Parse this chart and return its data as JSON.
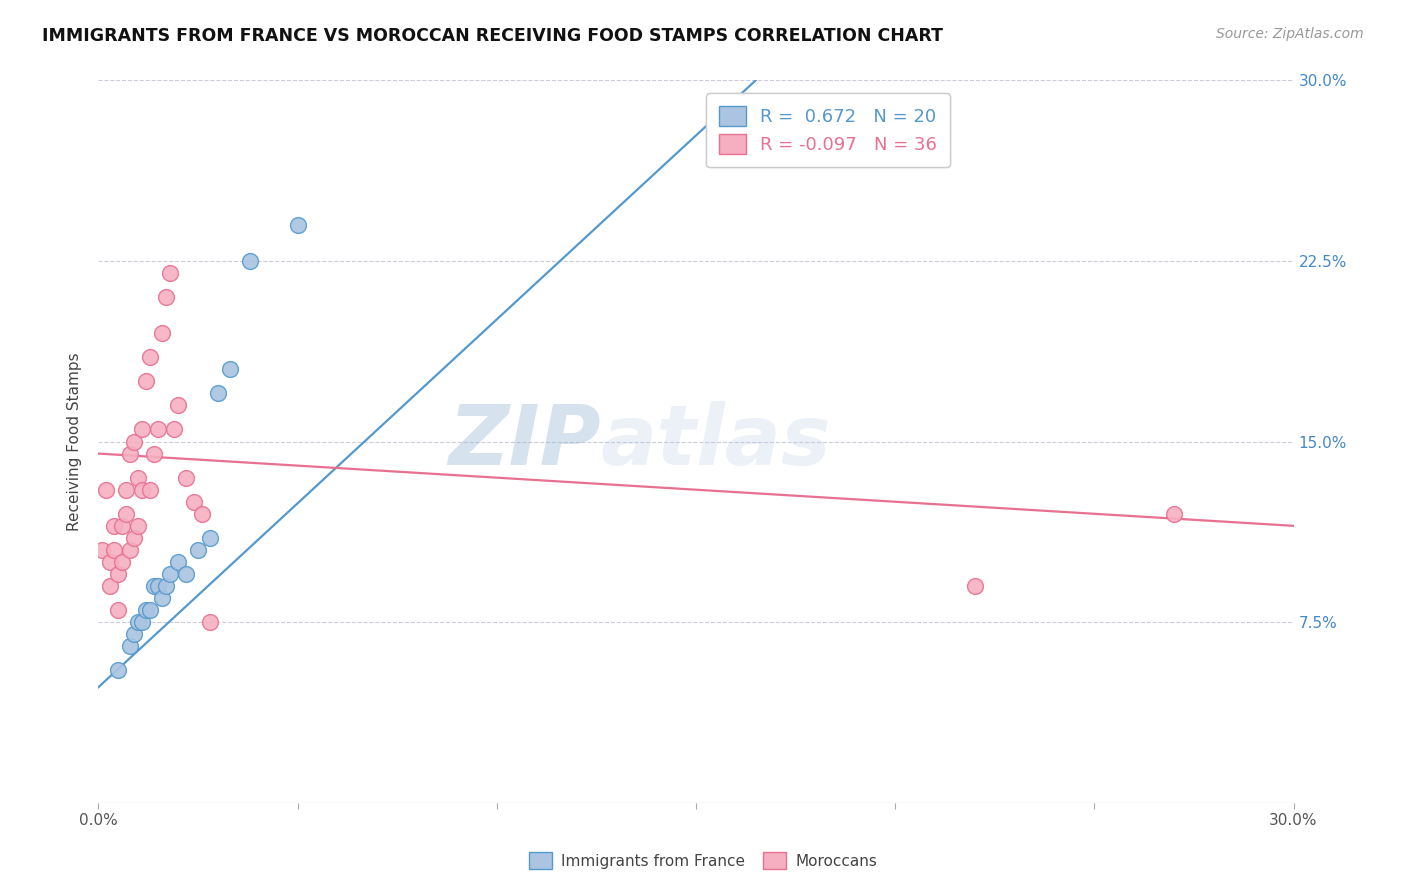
{
  "title": "IMMIGRANTS FROM FRANCE VS MOROCCAN RECEIVING FOOD STAMPS CORRELATION CHART",
  "source": "Source: ZipAtlas.com",
  "ylabel": "Receiving Food Stamps",
  "xlim": [
    0.0,
    0.3
  ],
  "ylim": [
    0.0,
    0.3
  ],
  "xticks": [
    0.0,
    0.05,
    0.1,
    0.15,
    0.2,
    0.25,
    0.3
  ],
  "yticks": [
    0.075,
    0.15,
    0.225,
    0.3
  ],
  "color_france": "#aac4e2",
  "color_moroccan": "#f5afc0",
  "color_france_edge": "#5599cc",
  "color_moroccan_edge": "#e87090",
  "color_france_line": "#5599cc",
  "color_moroccan_line": "#e87090",
  "watermark_zip": "ZIP",
  "watermark_atlas": "atlas",
  "legend_labels": [
    "Immigrants from France",
    "Moroccans"
  ],
  "legend_r_france": "R =  0.672",
  "legend_n_france": "N = 20",
  "legend_r_moroccan": "R = -0.097",
  "legend_n_moroccan": "N = 36",
  "france_scatter_x": [
    0.005,
    0.008,
    0.009,
    0.01,
    0.011,
    0.012,
    0.013,
    0.014,
    0.015,
    0.016,
    0.017,
    0.018,
    0.02,
    0.022,
    0.025,
    0.028,
    0.03,
    0.033,
    0.038,
    0.05
  ],
  "france_scatter_y": [
    0.055,
    0.065,
    0.07,
    0.075,
    0.075,
    0.08,
    0.08,
    0.09,
    0.09,
    0.085,
    0.09,
    0.095,
    0.1,
    0.095,
    0.105,
    0.11,
    0.17,
    0.18,
    0.225,
    0.24
  ],
  "moroccan_scatter_x": [
    0.001,
    0.002,
    0.003,
    0.003,
    0.004,
    0.004,
    0.005,
    0.005,
    0.006,
    0.006,
    0.007,
    0.007,
    0.008,
    0.008,
    0.009,
    0.009,
    0.01,
    0.01,
    0.011,
    0.011,
    0.012,
    0.013,
    0.013,
    0.014,
    0.015,
    0.016,
    0.017,
    0.018,
    0.019,
    0.02,
    0.022,
    0.024,
    0.026,
    0.028,
    0.22,
    0.27
  ],
  "moroccan_scatter_y": [
    0.105,
    0.13,
    0.09,
    0.1,
    0.105,
    0.115,
    0.08,
    0.095,
    0.1,
    0.115,
    0.12,
    0.13,
    0.105,
    0.145,
    0.15,
    0.11,
    0.115,
    0.135,
    0.13,
    0.155,
    0.175,
    0.185,
    0.13,
    0.145,
    0.155,
    0.195,
    0.21,
    0.22,
    0.155,
    0.165,
    0.135,
    0.125,
    0.12,
    0.075,
    0.09,
    0.12
  ],
  "france_line_x": [
    0.0,
    0.165
  ],
  "france_line_y": [
    0.048,
    0.3
  ],
  "moroccan_line_x": [
    0.0,
    0.3
  ],
  "moroccan_line_y": [
    0.145,
    0.115
  ]
}
